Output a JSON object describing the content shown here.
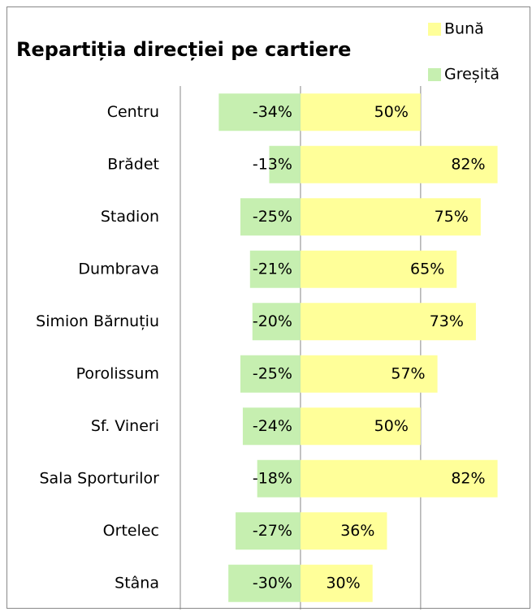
{
  "chart_data": {
    "type": "bar",
    "orientation": "horizontal",
    "title": "Repartiția direcției pe cartiere",
    "categories": [
      "Centru",
      "Brădet",
      "Stadion",
      "Dumbrava",
      "Simion Bărnuțiu",
      "Porolissum",
      "Sf. Vineri",
      "Sala Sporturilor",
      "Ortelec",
      "Stâna"
    ],
    "series": [
      {
        "name": "Bună",
        "color": "#ffff99",
        "values": [
          50,
          82,
          75,
          65,
          73,
          57,
          50,
          82,
          36,
          30
        ],
        "value_labels": [
          "50%",
          "82%",
          "75%",
          "65%",
          "73%",
          "57%",
          "50%",
          "82%",
          "36%",
          "30%"
        ]
      },
      {
        "name": "Greșită",
        "color": "#c6efb0",
        "values": [
          -34,
          -13,
          -25,
          -21,
          -20,
          -25,
          -24,
          -18,
          -27,
          -30
        ],
        "value_labels": [
          "-34%",
          "-13%",
          "-25%",
          "-21%",
          "-20%",
          "-25%",
          "-24%",
          "-18%",
          "-27%",
          "-30%"
        ]
      }
    ],
    "xlim": [
      -50,
      96
    ],
    "xticks": [
      -50,
      0,
      50
    ],
    "tick_labels": false,
    "grid": true,
    "legend": "top-right"
  }
}
